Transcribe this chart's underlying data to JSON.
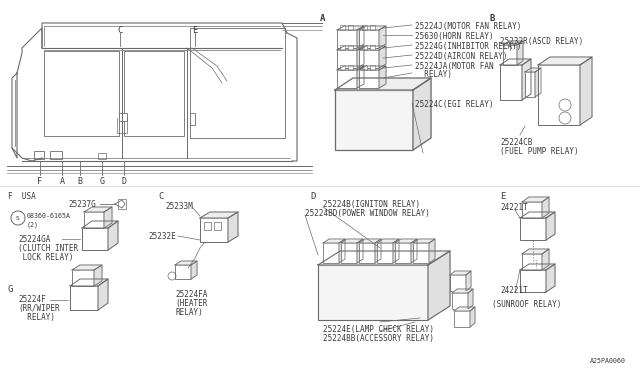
{
  "bg_color": "#ffffff",
  "line_color": "#6a6a6a",
  "text_color": "#3a3a3a",
  "fs_main": 5.5,
  "fs_tiny": 4.8,
  "fs_label": 6.5,
  "footer": "A25PA0060",
  "section_A_labels": [
    "25224J(MOTOR FAN RELAY)",
    "25630(HORN RELAY)",
    "25224G(INHIBITOR RELAY)",
    "25224D(AIRCON RELAY)",
    "25224JA(MOTOR FAN",
    "  RELAY)",
    "25224C(EGI RELAY)"
  ],
  "section_B_labels": [
    "25232R(ASCD RELAY)",
    "25224CB",
    "(FUEL PUMP RELAY)"
  ],
  "section_C_labels": [
    "25233M",
    "25232E",
    "25224FA",
    "(HEATER",
    "RELAY)"
  ],
  "section_D_labels": [
    "25224B(IGNITON RELAY)",
    "25224BD(POWER WINDOW RELAY)",
    "25224E(LAMP CHECK RELAY)",
    "25224BB(ACCESSORY RELAY)"
  ],
  "section_E_labels": [
    "24221T",
    "24221T",
    "(SUNROOF RELAY)"
  ],
  "section_F_labels": [
    "F  USA",
    "25237G",
    "08360-6165A",
    "(2)",
    "25224GA",
    "(CLUTCH INTER",
    " LOCK RELAY)"
  ],
  "section_G_labels": [
    "G",
    "25224F",
    "(RR/WIPER",
    "  RELAY)"
  ]
}
